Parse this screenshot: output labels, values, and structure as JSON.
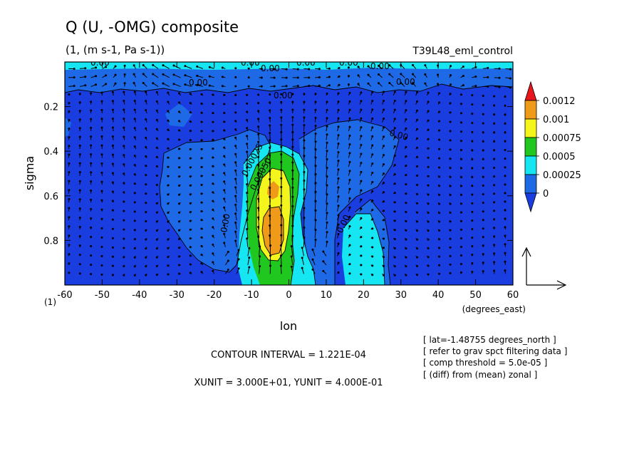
{
  "chart_data": {
    "type": "contour",
    "title": "Q (U, -OMG) composite",
    "subtitle": "(1, (m s-1, Pa s-1))",
    "experiment": "T39L48_eml_control",
    "xlabel": "lon",
    "xunit": "(degrees_east)",
    "ylabel": "sigma",
    "yunit": "(1)",
    "xlim": [
      -60,
      60
    ],
    "ylim": [
      1.0,
      0.0
    ],
    "x_ticks": [
      -60,
      -50,
      -40,
      -30,
      -20,
      -10,
      0,
      10,
      20,
      30,
      40,
      50,
      60
    ],
    "x_tick_labels": [
      "-60",
      "-50",
      "-40",
      "-30",
      "-20",
      "-10",
      "0",
      "10",
      "20",
      "30",
      "40",
      "50",
      "60"
    ],
    "y_ticks": [
      0.2,
      0.4,
      0.6,
      0.8
    ],
    "y_tick_labels": [
      "0.2",
      "0.4",
      "0.6",
      "0.8"
    ],
    "colorbar": {
      "levels": [
        "0.0012",
        "0.001",
        "0.00075",
        "0.0005",
        "0.00025",
        "0"
      ],
      "colors": [
        "#e8161d",
        "#f09a1a",
        "#f5f51e",
        "#1fc71f",
        "#15e6f2",
        "#1e6ae6",
        "#1a3de0"
      ]
    },
    "contour_labels": [
      "0.00",
      "0.00",
      "0.00",
      "0.00",
      "0.00",
      "0.00",
      "0.00",
      "0.00",
      "0.00",
      "0.00",
      "0.00025",
      "0.00050",
      "0.00",
      "0.00"
    ],
    "peak": {
      "lon": -3,
      "sigma": 0.75,
      "value": 0.00105
    },
    "notes": {
      "contour_interval": "CONTOUR INTERVAL = 1.221E-04",
      "vector_units": "XUNIT = 3.000E+01, YUNIT = 4.000E-01"
    },
    "info_lines": [
      "[ lat=-1.48755 degrees_north ]",
      "[ refer to grav spct filtering data ]",
      "[ comp threshold = 5.0e-05 ]",
      "[ (diff) from (mean) zonal ]"
    ]
  }
}
